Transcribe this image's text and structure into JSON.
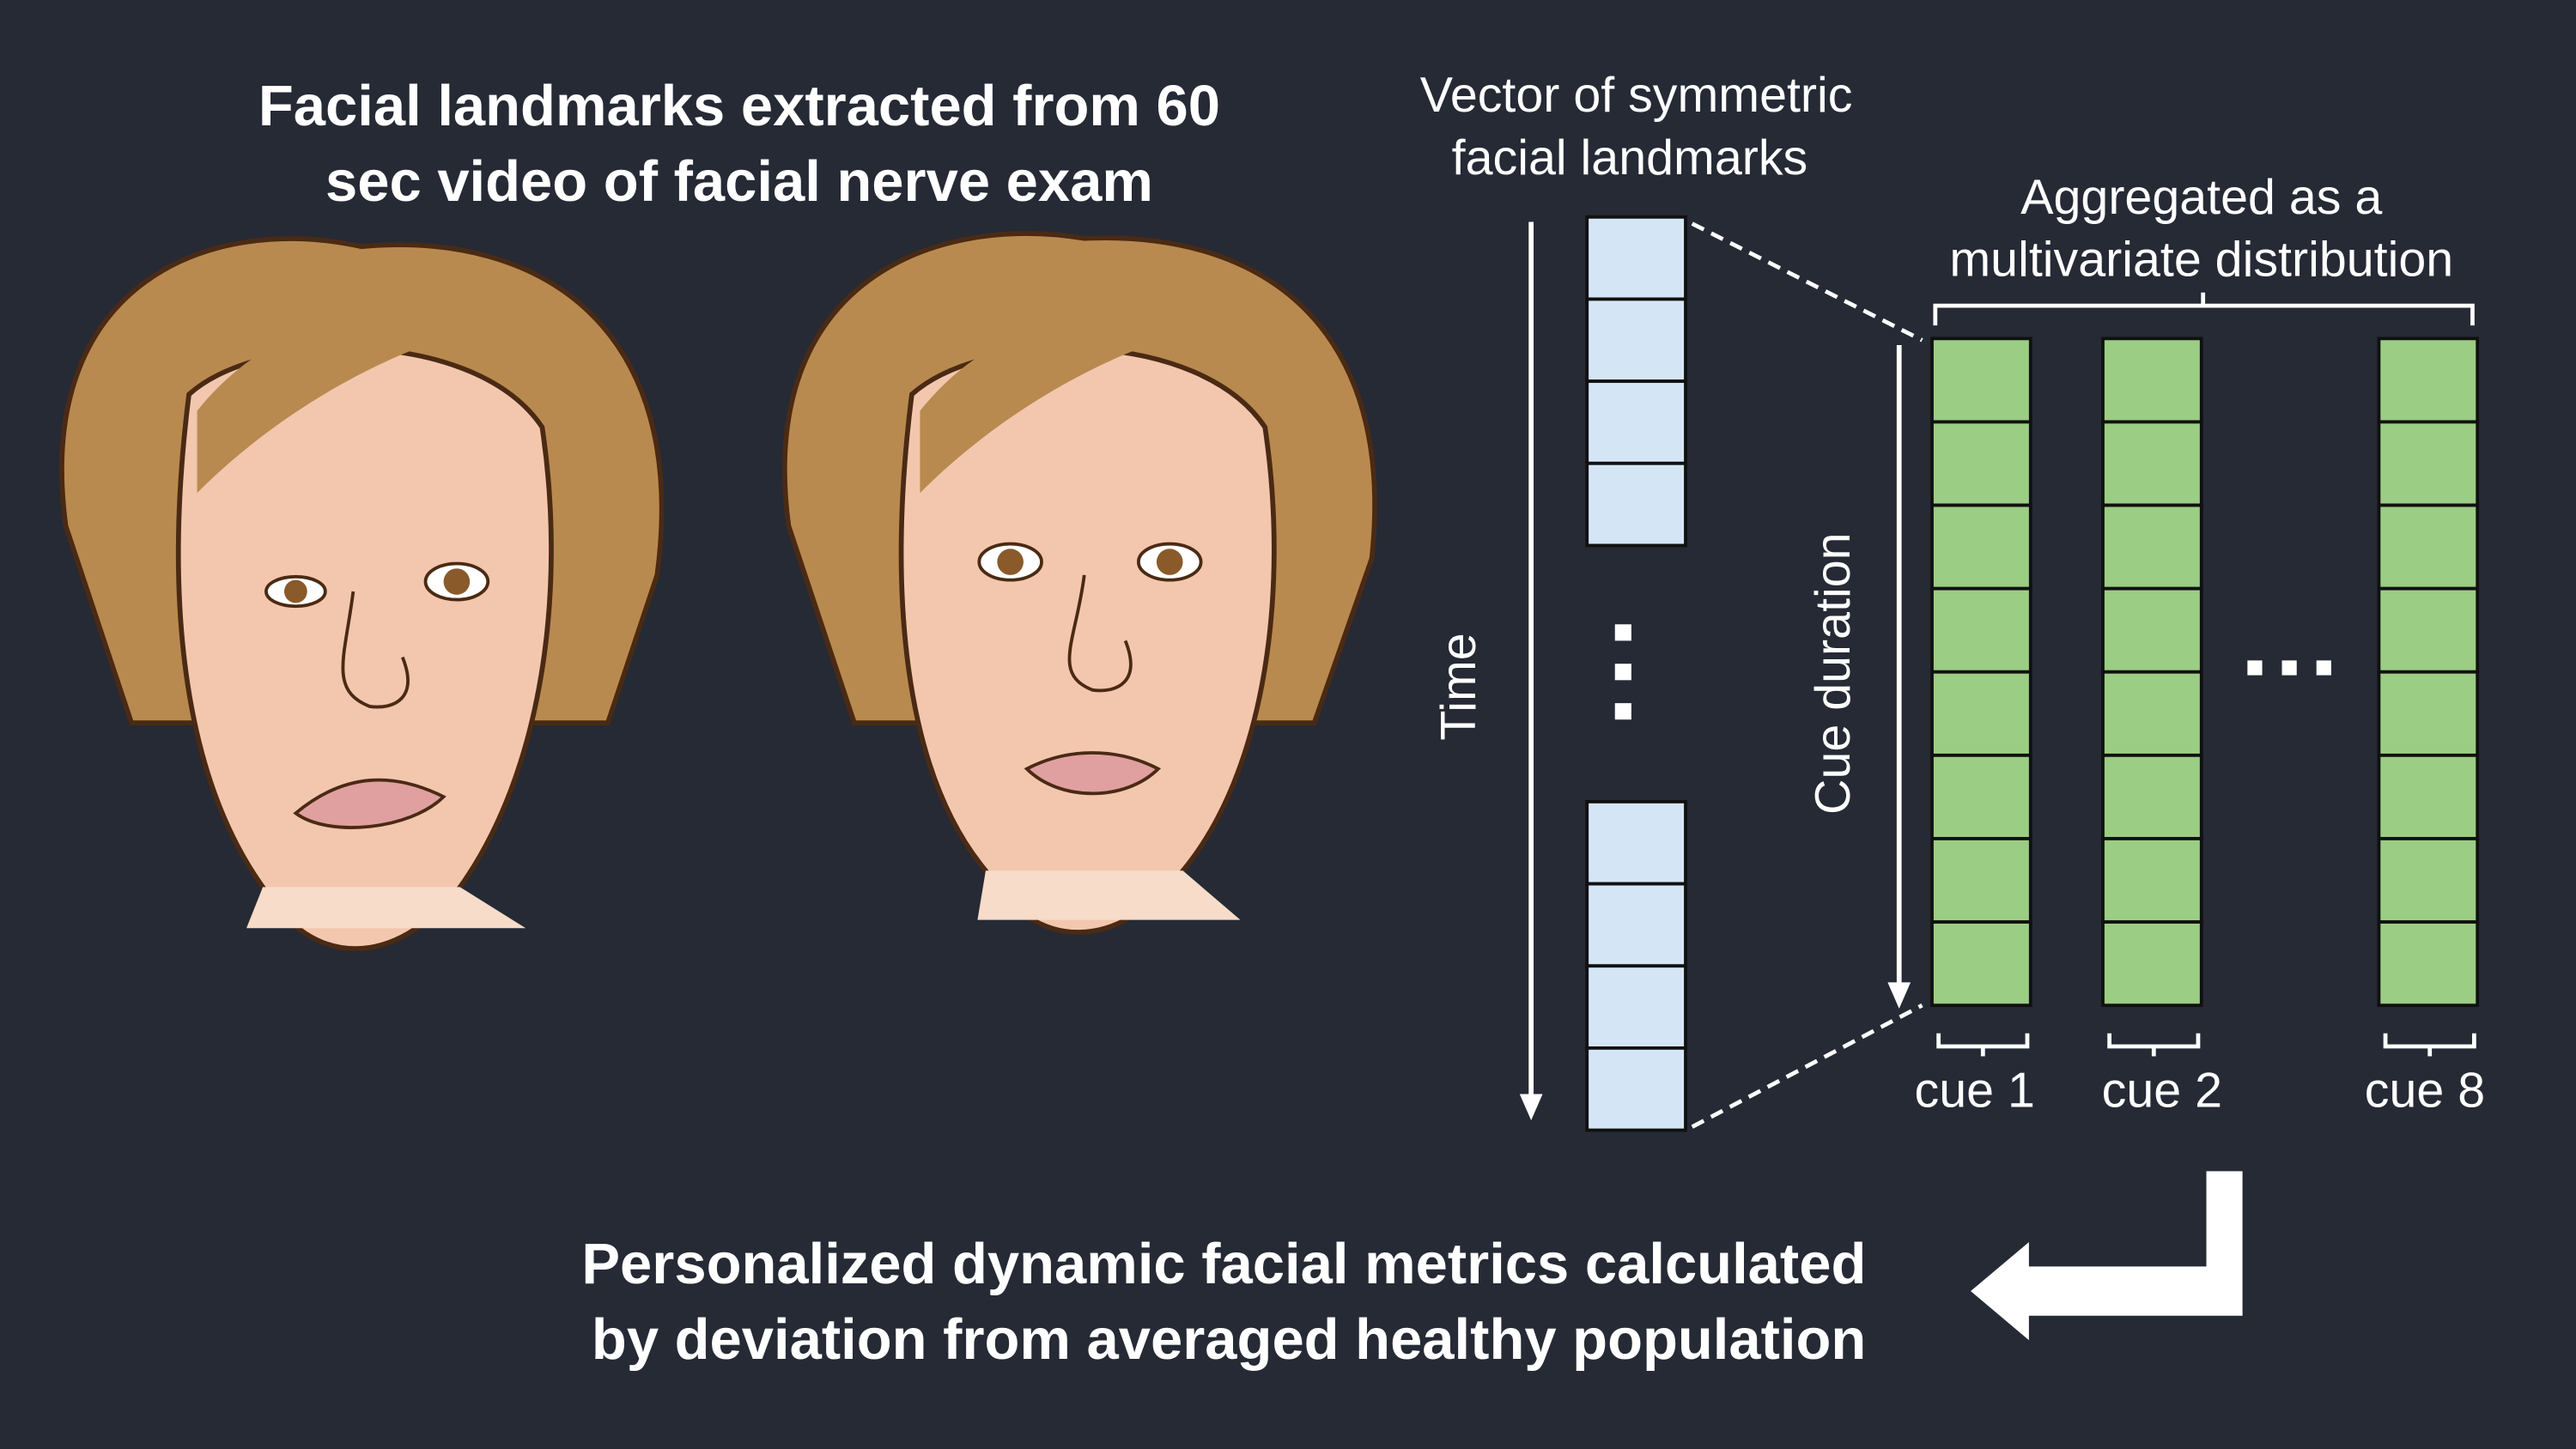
{
  "title": {
    "lines": [
      "Facial landmarks extracted from 60",
      "sec video of facial nerve exam"
    ]
  },
  "vector_label": {
    "lines": [
      "Vector of symmetric",
      "facial landmarks"
    ]
  },
  "time_label": "Time",
  "cue_duration_label": "Cue duration",
  "aggregated_label": {
    "lines": [
      "Aggregated as a",
      "multivariate distribution"
    ]
  },
  "cues": [
    "cue 1",
    "cue 2",
    "cue 8"
  ],
  "footer": {
    "lines": [
      "Personalized dynamic facial metrics calculated",
      "by deviation from averaged healthy population"
    ]
  }
}
